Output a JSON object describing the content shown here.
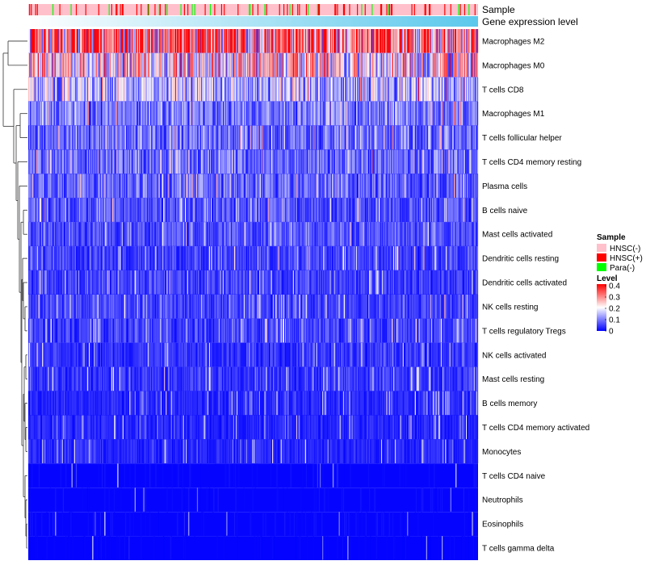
{
  "chart_data": {
    "type": "heatmap",
    "title": "",
    "value_range": [
      0,
      0.4
    ],
    "annotations": [
      {
        "name": "Sample",
        "label": "Sample"
      },
      {
        "name": "Gene expression level",
        "label": "Gene expression level"
      }
    ],
    "rows": [
      {
        "label": "Macrophages M2",
        "mean_level": 0.29
      },
      {
        "label": "Macrophages M0",
        "mean_level": 0.2
      },
      {
        "label": "T cells CD8",
        "mean_level": 0.14
      },
      {
        "label": "Macrophages M1",
        "mean_level": 0.09
      },
      {
        "label": "T cells follicular helper",
        "mean_level": 0.08
      },
      {
        "label": "T cells CD4 memory resting",
        "mean_level": 0.08
      },
      {
        "label": "Plasma cells",
        "mean_level": 0.07
      },
      {
        "label": "B cells naive",
        "mean_level": 0.06
      },
      {
        "label": "Mast cells activated",
        "mean_level": 0.06
      },
      {
        "label": "Dendritic cells resting",
        "mean_level": 0.05
      },
      {
        "label": "Dendritic cells activated",
        "mean_level": 0.05
      },
      {
        "label": "NK cells resting",
        "mean_level": 0.05
      },
      {
        "label": "T cells regulatory  Tregs",
        "mean_level": 0.05
      },
      {
        "label": "NK cells activated",
        "mean_level": 0.04
      },
      {
        "label": "Mast cells resting",
        "mean_level": 0.04
      },
      {
        "label": "B cells memory",
        "mean_level": 0.03
      },
      {
        "label": "T cells CD4 memory activated",
        "mean_level": 0.03
      },
      {
        "label": "Monocytes",
        "mean_level": 0.03
      },
      {
        "label": "T cells CD4 naive",
        "mean_level": 0.01
      },
      {
        "label": "Neutrophils",
        "mean_level": 0.01
      },
      {
        "label": "Eosinophils",
        "mean_level": 0.01
      },
      {
        "label": "T cells gamma delta",
        "mean_level": 0.005
      }
    ],
    "legend": {
      "sample": {
        "title": "Sample",
        "items": [
          {
            "label": "HNSC(-)",
            "color": "#FFC0CB"
          },
          {
            "label": "HNSC(+)",
            "color": "#FF0000"
          },
          {
            "label": "Para(-)",
            "color": "#00FF00"
          }
        ]
      },
      "level": {
        "title": "Level",
        "ticks": [
          {
            "value": 0.4,
            "label": "0.4"
          },
          {
            "value": 0.3,
            "label": "0.3"
          },
          {
            "value": 0.2,
            "label": "0.2"
          },
          {
            "value": 0.1,
            "label": "0.1"
          },
          {
            "value": 0,
            "label": "0"
          }
        ]
      }
    },
    "colors": {
      "low": "#0000FF",
      "mid": "#FFFFFF",
      "high": "#FF0000",
      "gene_low": "#FFFFFF",
      "gene_high": "#5BC8EC"
    }
  }
}
